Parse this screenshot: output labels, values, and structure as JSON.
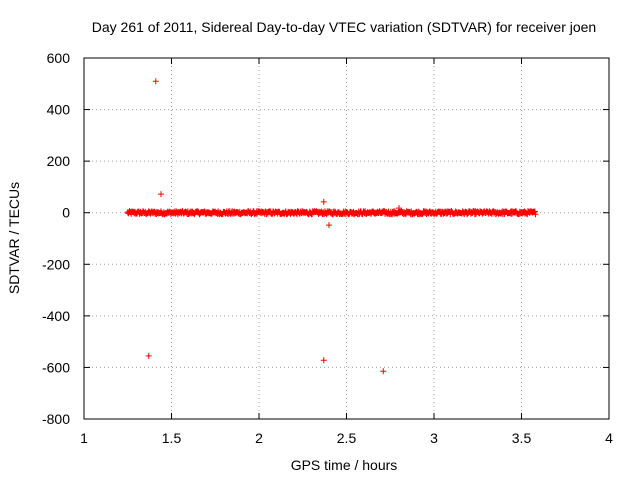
{
  "chart_data": {
    "type": "scatter",
    "title": "Day 261 of 2011, Sidereal Day-to-day VTEC variation (SDTVAR) for receiver joen",
    "xlabel": "GPS time / hours",
    "ylabel": "SDTVAR / TECUs",
    "xlim": [
      1,
      4
    ],
    "ylim": [
      -800,
      600
    ],
    "x_ticks": [
      "1",
      "1.5",
      "2",
      "2.5",
      "3",
      "3.5",
      "4"
    ],
    "x_tick_values": [
      1,
      1.5,
      2,
      2.5,
      3,
      3.5,
      4
    ],
    "y_ticks": [
      "600",
      "400",
      "200",
      "0",
      "-200",
      "-400",
      "-600",
      "-800"
    ],
    "y_tick_values": [
      600,
      400,
      200,
      0,
      -200,
      -400,
      -600,
      -800
    ],
    "grid": true,
    "marker": "+",
    "series": [
      {
        "name": "SDTVAR",
        "color": "#ff0000",
        "dense_band": {
          "x_start": 1.25,
          "x_end": 3.58,
          "center": 0,
          "amplitude": 6,
          "count": 700
        },
        "outliers": [
          {
            "x": 1.41,
            "y": 510
          },
          {
            "x": 1.44,
            "y": 72
          },
          {
            "x": 2.37,
            "y": 42
          },
          {
            "x": 2.4,
            "y": -48
          },
          {
            "x": 2.8,
            "y": 18
          },
          {
            "x": 1.37,
            "y": -555
          },
          {
            "x": 2.37,
            "y": -572
          },
          {
            "x": 2.71,
            "y": -615
          }
        ]
      }
    ]
  }
}
